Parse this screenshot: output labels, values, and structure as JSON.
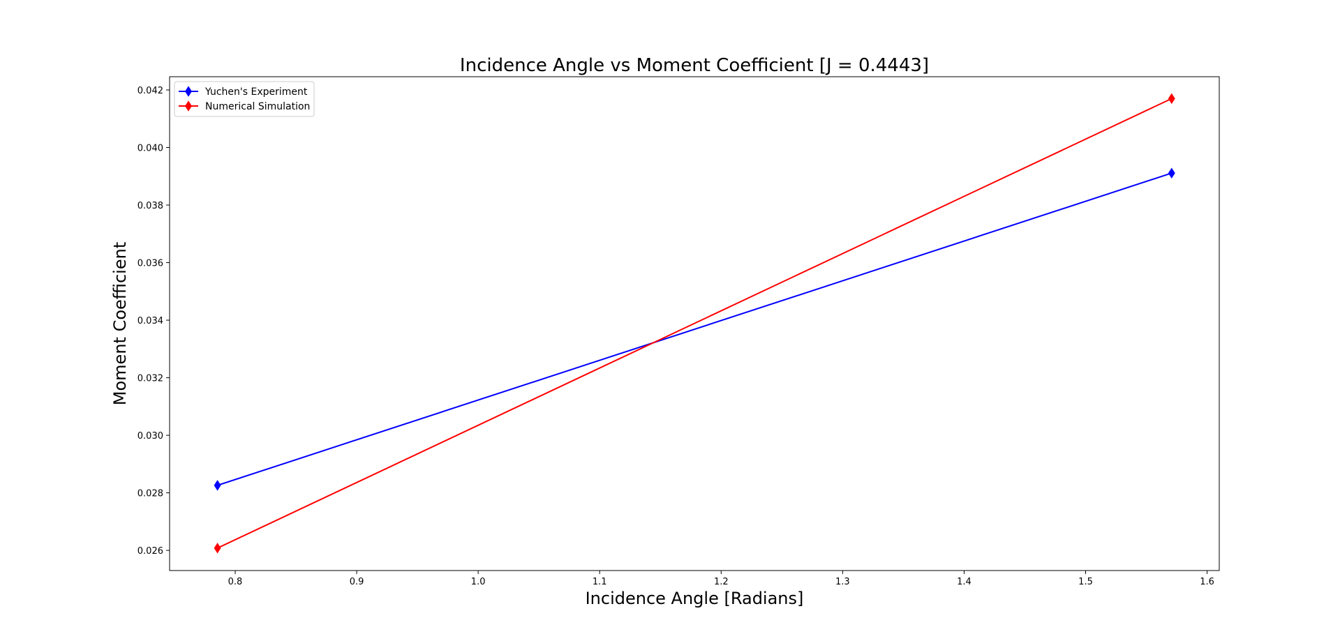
{
  "chart_data": {
    "type": "line",
    "title": "Incidence Angle vs Moment Coefficient [J = 0.4443]",
    "xlabel": "Incidence Angle [Radians]",
    "ylabel": "Moment Coefficient",
    "xlim": [
      0.746,
      1.61
    ],
    "ylim": [
      0.0253,
      0.04246
    ],
    "x_ticks": [
      0.8,
      0.9,
      1.0,
      1.1,
      1.2,
      1.3,
      1.4,
      1.5,
      1.6
    ],
    "x_tick_labels": [
      "0.8",
      "0.9",
      "1.0",
      "1.1",
      "1.2",
      "1.3",
      "1.4",
      "1.5",
      "1.6"
    ],
    "y_ticks": [
      0.026,
      0.028,
      0.03,
      0.032,
      0.034,
      0.036,
      0.038,
      0.04,
      0.042
    ],
    "y_tick_labels": [
      "0.026",
      "0.028",
      "0.030",
      "0.032",
      "0.034",
      "0.036",
      "0.038",
      "0.040",
      "0.042"
    ],
    "grid": false,
    "legend_position": "upper-left",
    "series": [
      {
        "name": "Yuchen's Experiment",
        "color": "#0000ff",
        "marker": "thin-diamond",
        "x": [
          0.7854,
          1.5708
        ],
        "y": [
          0.02826,
          0.03911
        ]
      },
      {
        "name": "Numerical Simulation",
        "color": "#ff0000",
        "marker": "thin-diamond",
        "x": [
          0.7854,
          1.5708
        ],
        "y": [
          0.02608,
          0.0417
        ]
      }
    ]
  }
}
